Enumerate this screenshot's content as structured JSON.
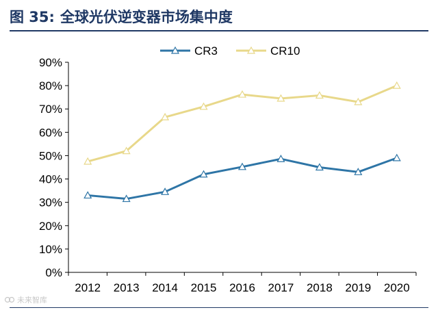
{
  "figure": {
    "number_label": "图 35:",
    "title": "全球光伏逆变器市场集中度"
  },
  "watermark": {
    "text": "未来智库"
  },
  "colors": {
    "cr3": "#2e75a6",
    "cr10": "#e8d88a",
    "axis": "#000000",
    "title": "#1f3864"
  },
  "chart_data": {
    "type": "line",
    "title": "全球光伏逆变器市场集中度",
    "xlabel": "",
    "ylabel": "",
    "categories": [
      "2012",
      "2013",
      "2014",
      "2015",
      "2016",
      "2017",
      "2018",
      "2019",
      "2020"
    ],
    "ylim": [
      0,
      0.9
    ],
    "yticks": [
      0,
      0.1,
      0.2,
      0.3,
      0.4,
      0.5,
      0.6,
      0.7,
      0.8,
      0.9
    ],
    "ytick_labels": [
      "0%",
      "10%",
      "20%",
      "30%",
      "40%",
      "50%",
      "60%",
      "70%",
      "80%",
      "90%"
    ],
    "legend_position": "top-center",
    "grid": false,
    "marker": "triangle",
    "series": [
      {
        "name": "CR3",
        "color": "#2e75a6",
        "values": [
          0.33,
          0.315,
          0.345,
          0.42,
          0.452,
          0.486,
          0.45,
          0.43,
          0.49
        ]
      },
      {
        "name": "CR10",
        "color": "#e8d88a",
        "values": [
          0.475,
          0.52,
          0.665,
          0.71,
          0.762,
          0.745,
          0.758,
          0.73,
          0.8
        ]
      }
    ]
  }
}
